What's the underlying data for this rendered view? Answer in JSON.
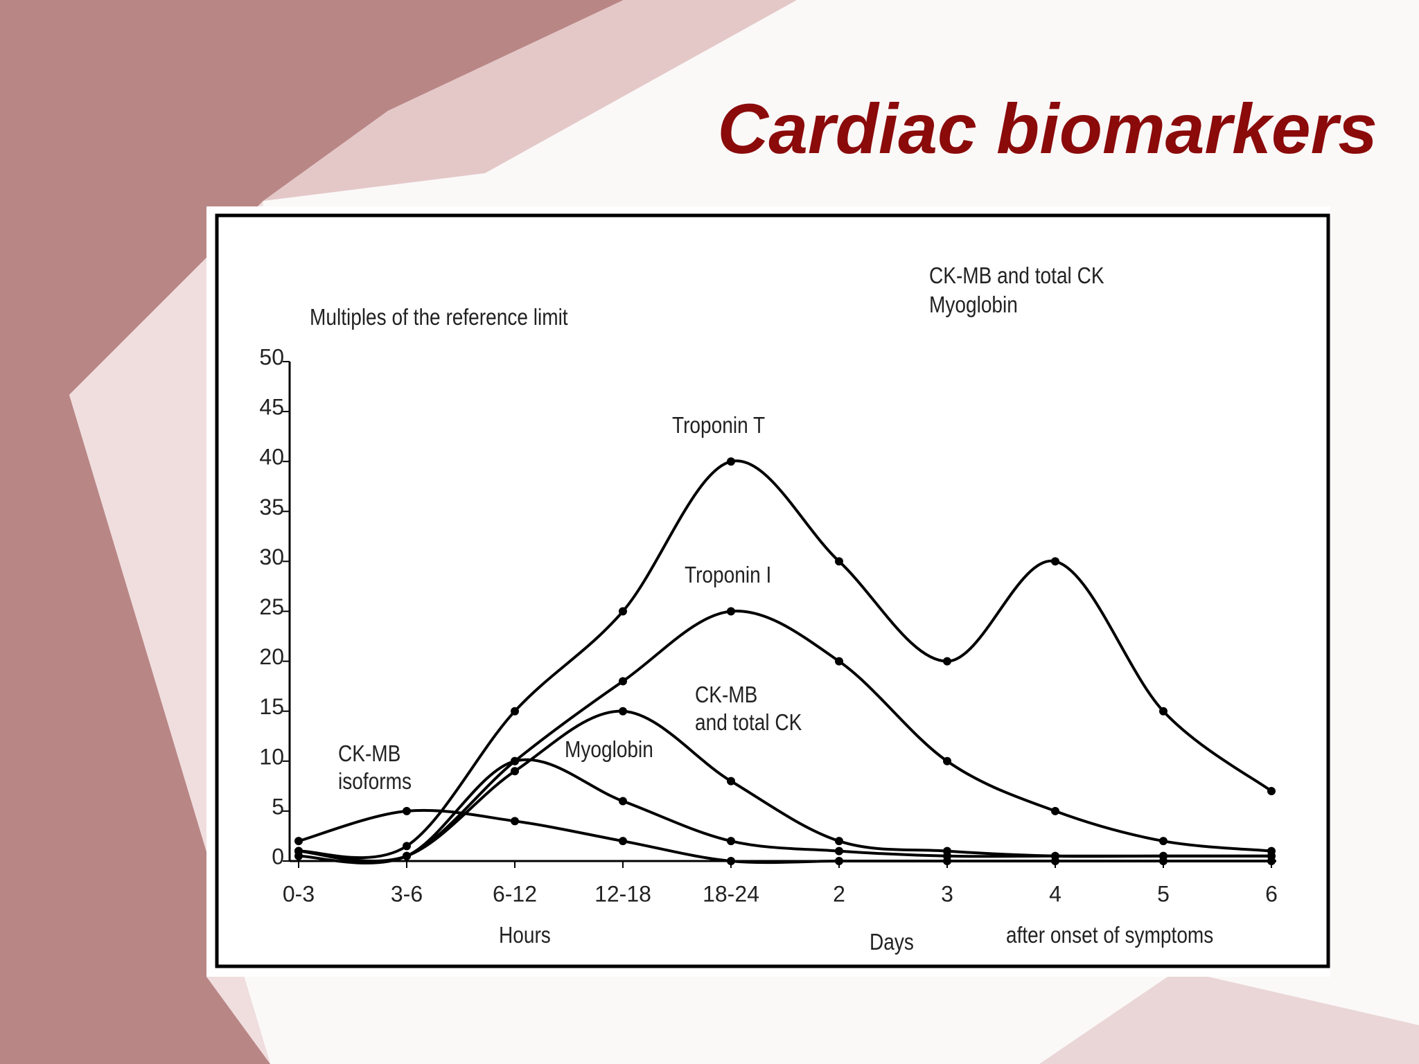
{
  "chart_data": {
    "type": "line",
    "title": "Cardiac biomarkers",
    "y_label": "Multiples of the reference limit",
    "x_labels": [
      "Hours",
      "Days",
      "after onset of symptoms"
    ],
    "annotations": [
      "CK-MB and total CK",
      "Myoglobin"
    ],
    "categories": [
      "0-3",
      "3-6",
      "6-12",
      "12-18",
      "18-24",
      "2",
      "3",
      "4",
      "5",
      "6"
    ],
    "series": [
      {
        "name": "Troponin T",
        "color": "#000000",
        "values": [
          1,
          1.5,
          15,
          25,
          40,
          30,
          20,
          30,
          15,
          7
        ]
      },
      {
        "name": "Troponin I",
        "color": "#000000",
        "values": [
          1,
          0.5,
          10,
          18,
          25,
          20,
          10,
          5,
          2,
          1
        ]
      },
      {
        "name": "CK-MB\nand total CK",
        "color": "#000000",
        "values": [
          1,
          0.5,
          9,
          15,
          8,
          2,
          1,
          0.5,
          0.5,
          0.5
        ]
      },
      {
        "name": "Myoglobin",
        "color": "#000000",
        "values": [
          0.5,
          0.5,
          10,
          6,
          2,
          1,
          0.5,
          0.5,
          0.5,
          0.5
        ]
      },
      {
        "name": "CK-MB\nisoforms",
        "color": "#000000",
        "values": [
          2,
          5,
          4,
          2,
          0,
          0,
          0,
          0,
          0,
          0
        ]
      }
    ],
    "ylim": [
      0,
      50
    ],
    "yticks": [
      0,
      5,
      10,
      15,
      20,
      25,
      30,
      35,
      40,
      45,
      50
    ],
    "grid": false
  }
}
